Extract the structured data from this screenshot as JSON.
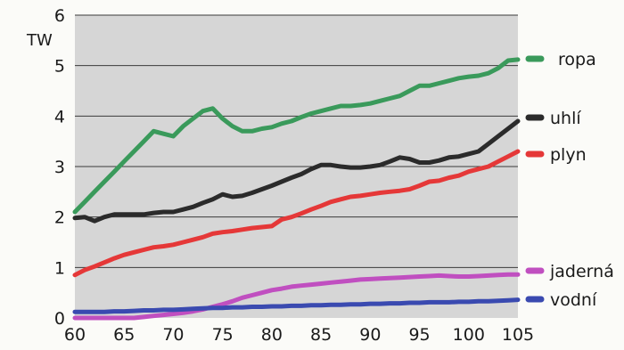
{
  "chart_data": {
    "type": "line",
    "unit_label": "TW",
    "xlim": [
      60,
      105
    ],
    "ylim": [
      0,
      6
    ],
    "x_ticks": [
      60,
      65,
      70,
      75,
      80,
      85,
      90,
      95,
      100,
      105
    ],
    "y_ticks": [
      0,
      1,
      2,
      3,
      4,
      5,
      6
    ],
    "grid": true,
    "legend_position": "right",
    "x": [
      60,
      61,
      62,
      63,
      64,
      65,
      66,
      67,
      68,
      69,
      70,
      71,
      72,
      73,
      74,
      75,
      76,
      77,
      78,
      79,
      80,
      81,
      82,
      83,
      84,
      85,
      86,
      87,
      88,
      89,
      90,
      91,
      92,
      93,
      94,
      95,
      96,
      97,
      98,
      99,
      100,
      101,
      102,
      103,
      104,
      105
    ],
    "series": [
      {
        "name": "ropa",
        "color": "#3a9a5b",
        "values": [
          2.1,
          2.3,
          2.5,
          2.7,
          2.9,
          3.1,
          3.3,
          3.5,
          3.7,
          3.65,
          3.6,
          3.8,
          3.95,
          4.1,
          4.15,
          3.95,
          3.8,
          3.7,
          3.7,
          3.75,
          3.78,
          3.85,
          3.9,
          3.98,
          4.05,
          4.1,
          4.15,
          4.2,
          4.2,
          4.22,
          4.25,
          4.3,
          4.35,
          4.4,
          4.5,
          4.6,
          4.6,
          4.65,
          4.7,
          4.75,
          4.78,
          4.8,
          4.85,
          4.95,
          5.1,
          5.12
        ]
      },
      {
        "name": "uhlí",
        "color": "#2b2b2b",
        "values": [
          1.98,
          2.0,
          1.92,
          2.0,
          2.05,
          2.05,
          2.05,
          2.05,
          2.08,
          2.1,
          2.1,
          2.15,
          2.2,
          2.28,
          2.35,
          2.45,
          2.4,
          2.42,
          2.48,
          2.55,
          2.62,
          2.7,
          2.78,
          2.85,
          2.95,
          3.03,
          3.03,
          3.0,
          2.98,
          2.98,
          3.0,
          3.03,
          3.1,
          3.18,
          3.15,
          3.08,
          3.08,
          3.12,
          3.18,
          3.2,
          3.25,
          3.3,
          3.45,
          3.6,
          3.75,
          3.9
        ]
      },
      {
        "name": "plyn",
        "color": "#e53838",
        "values": [
          0.85,
          0.95,
          1.02,
          1.1,
          1.18,
          1.25,
          1.3,
          1.35,
          1.4,
          1.42,
          1.45,
          1.5,
          1.55,
          1.6,
          1.67,
          1.7,
          1.72,
          1.75,
          1.78,
          1.8,
          1.82,
          1.95,
          2.0,
          2.07,
          2.15,
          2.22,
          2.3,
          2.35,
          2.4,
          2.42,
          2.45,
          2.48,
          2.5,
          2.52,
          2.55,
          2.62,
          2.7,
          2.72,
          2.78,
          2.82,
          2.9,
          2.95,
          3.0,
          3.1,
          3.2,
          3.3
        ]
      },
      {
        "name": "jaderná",
        "color": "#c04fc0",
        "values": [
          0.0,
          0.0,
          0.0,
          0.0,
          0.0,
          0.0,
          0.0,
          0.02,
          0.04,
          0.06,
          0.08,
          0.1,
          0.13,
          0.17,
          0.22,
          0.27,
          0.33,
          0.4,
          0.45,
          0.5,
          0.55,
          0.58,
          0.62,
          0.64,
          0.66,
          0.68,
          0.7,
          0.72,
          0.74,
          0.76,
          0.77,
          0.78,
          0.79,
          0.8,
          0.81,
          0.82,
          0.83,
          0.84,
          0.83,
          0.82,
          0.82,
          0.83,
          0.84,
          0.85,
          0.86,
          0.86
        ]
      },
      {
        "name": "vodní",
        "color": "#3a4ab0",
        "values": [
          0.12,
          0.12,
          0.12,
          0.12,
          0.13,
          0.13,
          0.14,
          0.15,
          0.15,
          0.16,
          0.16,
          0.17,
          0.18,
          0.19,
          0.2,
          0.2,
          0.21,
          0.21,
          0.22,
          0.22,
          0.23,
          0.23,
          0.24,
          0.24,
          0.25,
          0.25,
          0.26,
          0.26,
          0.27,
          0.27,
          0.28,
          0.28,
          0.29,
          0.29,
          0.3,
          0.3,
          0.31,
          0.31,
          0.31,
          0.32,
          0.32,
          0.33,
          0.33,
          0.34,
          0.35,
          0.36
        ]
      }
    ]
  }
}
